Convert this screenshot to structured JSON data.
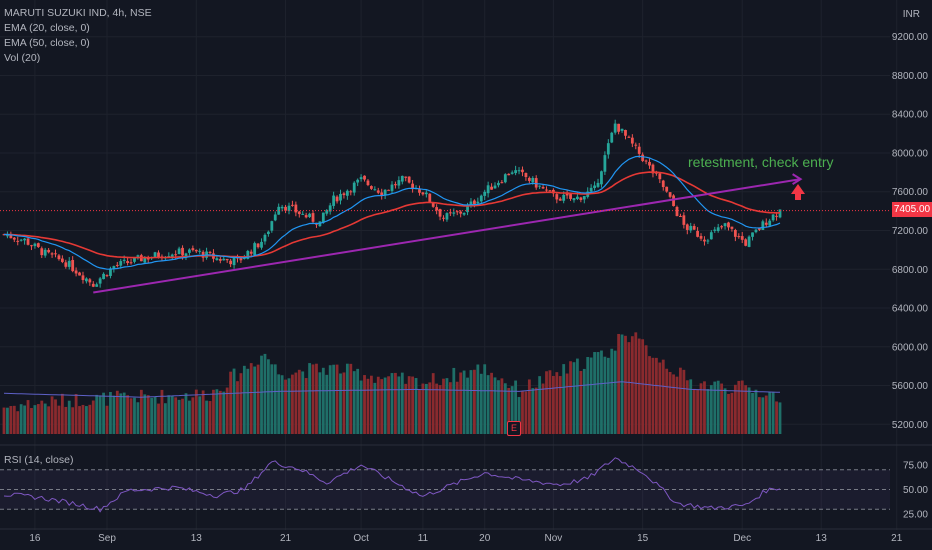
{
  "legend": {
    "symbol": "MARUTI SUZUKI IND, 4h, NSE",
    "ema20": "EMA (20, close, 0)",
    "ema50": "EMA (50, close, 0)",
    "vol": "Vol (20)"
  },
  "currency": "INR",
  "last_price": "7405.00",
  "annotation": "retestment, check entry",
  "earnings_marker": "E",
  "rsi_legend": "RSI (14, close)",
  "colors": {
    "background": "#131722",
    "up": "#26a69a",
    "down": "#ef5350",
    "ema20": "#2196f3",
    "ema50": "#e53935",
    "trendline": "#9c27b0",
    "rsi": "#7e57c2",
    "annotation": "#4caf50",
    "arrow": "#f23645"
  },
  "chart_data": [
    {
      "type": "candlestick",
      "title": "MARUTI SUZUKI IND, 4h, NSE",
      "y_ticks": [
        "9200.00",
        "8800.00",
        "8400.00",
        "8000.00",
        "7600.00",
        "7200.00",
        "6800.00",
        "6400.00",
        "6000.00",
        "5600.00",
        "5200.00"
      ],
      "x_ticks": [
        "16",
        "Sep",
        "13",
        "21",
        "Oct",
        "11",
        "20",
        "Nov",
        "15",
        "Dec",
        "13",
        "21"
      ],
      "ylim": [
        5100,
        9300
      ],
      "last_price": 7405,
      "anchors": [
        [
          0,
          7160
        ],
        [
          6,
          7100
        ],
        [
          12,
          6960
        ],
        [
          18,
          6870
        ],
        [
          26,
          6650
        ],
        [
          32,
          6830
        ],
        [
          40,
          6910
        ],
        [
          48,
          6970
        ],
        [
          56,
          6980
        ],
        [
          62,
          6910
        ],
        [
          68,
          6880
        ],
        [
          76,
          7120
        ],
        [
          80,
          7480
        ],
        [
          86,
          7380
        ],
        [
          92,
          7280
        ],
        [
          96,
          7520
        ],
        [
          104,
          7720
        ],
        [
          110,
          7600
        ],
        [
          116,
          7720
        ],
        [
          122,
          7600
        ],
        [
          128,
          7330
        ],
        [
          134,
          7400
        ],
        [
          140,
          7600
        ],
        [
          148,
          7820
        ],
        [
          152,
          7750
        ],
        [
          160,
          7550
        ],
        [
          166,
          7520
        ],
        [
          172,
          7620
        ],
        [
          178,
          8300
        ],
        [
          186,
          7950
        ],
        [
          192,
          7650
        ],
        [
          198,
          7250
        ],
        [
          204,
          7120
        ],
        [
          210,
          7250
        ],
        [
          216,
          7070
        ],
        [
          222,
          7300
        ],
        [
          226,
          7410
        ]
      ],
      "ema_series": [
        {
          "name": "EMA (20, close, 0)",
          "color": "#2196f3"
        },
        {
          "name": "EMA (50, close, 0)",
          "color": "#e53935"
        }
      ],
      "volume_anchors": [
        [
          0,
          5350
        ],
        [
          20,
          5420
        ],
        [
          40,
          5450
        ],
        [
          60,
          5480
        ],
        [
          76,
          5900
        ],
        [
          80,
          5700
        ],
        [
          96,
          5750
        ],
        [
          110,
          5650
        ],
        [
          122,
          5600
        ],
        [
          140,
          5750
        ],
        [
          150,
          5520
        ],
        [
          178,
          5950
        ],
        [
          180,
          6150
        ],
        [
          200,
          5600
        ],
        [
          216,
          5540
        ],
        [
          226,
          5450
        ]
      ],
      "volume_ma_anchors": [
        [
          0,
          5520
        ],
        [
          40,
          5480
        ],
        [
          80,
          5540
        ],
        [
          120,
          5560
        ],
        [
          150,
          5540
        ],
        [
          180,
          5640
        ],
        [
          200,
          5560
        ],
        [
          226,
          5530
        ]
      ],
      "trendline": {
        "from": [
          26,
          6560
        ],
        "to": [
          232,
          7730
        ]
      },
      "annotation": "retestment, check entry"
    },
    {
      "type": "line",
      "title": "RSI (14, close)",
      "y_ticks": [
        "75.00",
        "50.00",
        "25.00"
      ],
      "ylim": [
        15,
        88
      ],
      "bands": {
        "upper": 70,
        "middle": 50,
        "lower": 30
      },
      "anchors": [
        [
          0,
          45
        ],
        [
          10,
          42
        ],
        [
          20,
          36
        ],
        [
          28,
          30
        ],
        [
          36,
          49
        ],
        [
          50,
          52
        ],
        [
          62,
          44
        ],
        [
          70,
          50
        ],
        [
          78,
          78
        ],
        [
          86,
          71
        ],
        [
          94,
          57
        ],
        [
          104,
          75
        ],
        [
          114,
          57
        ],
        [
          122,
          43
        ],
        [
          130,
          54
        ],
        [
          140,
          67
        ],
        [
          150,
          60
        ],
        [
          162,
          55
        ],
        [
          170,
          61
        ],
        [
          178,
          82
        ],
        [
          186,
          68
        ],
        [
          196,
          36
        ],
        [
          206,
          31
        ],
        [
          216,
          34
        ],
        [
          222,
          49
        ],
        [
          226,
          52
        ]
      ]
    }
  ]
}
